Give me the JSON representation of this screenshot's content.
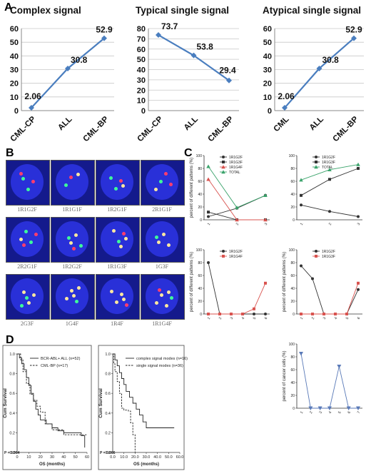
{
  "panels": {
    "a": "A",
    "b": "B",
    "c": "C",
    "d": "D"
  },
  "chart_data": [
    {
      "id": "complex",
      "type": "line",
      "title": "Complex signal",
      "categories": [
        "CML-CP",
        "ALL",
        "CML-BP"
      ],
      "values": [
        2.06,
        30.8,
        52.9
      ],
      "value_labels": [
        "2.06",
        "30.8",
        "52.9"
      ],
      "ylim": [
        0,
        60
      ],
      "yticks": [
        0,
        10,
        20,
        30,
        40,
        50,
        60
      ],
      "color": "#4a7ebf"
    },
    {
      "id": "typical",
      "type": "line",
      "title": "Typical single signal",
      "categories": [
        "CML-CP",
        "ALL",
        "CML-BP"
      ],
      "values": [
        73.7,
        53.8,
        29.4
      ],
      "value_labels": [
        "73.7",
        "53.8",
        "29.4"
      ],
      "ylim": [
        0,
        80
      ],
      "yticks": [
        0,
        10,
        20,
        30,
        40,
        50,
        60,
        70,
        80
      ],
      "color": "#4a7ebf"
    },
    {
      "id": "atypical",
      "type": "line",
      "title": "Atypical single signal",
      "categories": [
        "CML",
        "ALL",
        "CML-BP"
      ],
      "values": [
        2.06,
        30.8,
        52.9
      ],
      "value_labels": [
        "2.06",
        "30.8",
        "52.9"
      ],
      "ylim": [
        0,
        60
      ],
      "yticks": [
        0,
        10,
        20,
        30,
        40,
        50,
        60
      ],
      "color": "#4a7ebf"
    },
    {
      "id": "c1",
      "type": "line",
      "ylabel": "percent of different patterns (%)",
      "x": [
        1,
        2,
        3
      ],
      "ylim": [
        0,
        100
      ],
      "yticks": [
        0,
        20,
        40,
        60,
        80,
        100
      ],
      "series": [
        {
          "name": "1R1G2F",
          "values": [
            5,
            18,
            38
          ],
          "color": "#333333",
          "marker": "circle"
        },
        {
          "name": "1R1G3F",
          "values": [
            12,
            0,
            0
          ],
          "color": "#333333",
          "marker": "square"
        },
        {
          "name": "1R1G4F",
          "values": [
            63,
            0,
            0
          ],
          "color": "#d9534f",
          "marker": "triangle"
        },
        {
          "name": "TOTAL",
          "values": [
            83,
            19,
            38
          ],
          "color": "#3aa36b",
          "marker": "triangle"
        }
      ]
    },
    {
      "id": "c2",
      "type": "line",
      "x": [
        1,
        2,
        3
      ],
      "ylim": [
        0,
        100
      ],
      "yticks": [
        0,
        20,
        40,
        60,
        80,
        100
      ],
      "series": [
        {
          "name": "1R1G2F",
          "values": [
            23,
            13,
            5
          ],
          "color": "#333333",
          "marker": "circle"
        },
        {
          "name": "1R1G3F",
          "values": [
            38,
            63,
            80
          ],
          "color": "#333333",
          "marker": "square"
        },
        {
          "name": "TOTAL",
          "values": [
            62,
            78,
            86
          ],
          "color": "#3aa36b",
          "marker": "triangle"
        }
      ]
    },
    {
      "id": "c3",
      "type": "line",
      "ylabel": "percent of different patterns (%)",
      "x": [
        1,
        2,
        3,
        4,
        5,
        6
      ],
      "ylim": [
        0,
        100
      ],
      "yticks": [
        0,
        20,
        40,
        60,
        80,
        100
      ],
      "series": [
        {
          "name": "1R1G2F",
          "values": [
            80,
            0,
            0,
            0,
            0,
            0
          ],
          "color": "#333333",
          "marker": "circle"
        },
        {
          "name": "1R1G4F",
          "values": [
            0,
            0,
            0,
            0,
            8,
            48
          ],
          "color": "#d9534f",
          "marker": "square"
        }
      ]
    },
    {
      "id": "c4",
      "type": "line",
      "ylabel": "percent of different patterns (%)",
      "x": [
        1,
        2,
        3,
        4,
        5,
        6
      ],
      "ylim": [
        0,
        100
      ],
      "yticks": [
        0,
        20,
        40,
        60,
        80,
        100
      ],
      "series": [
        {
          "name": "1R1G2F",
          "values": [
            75,
            55,
            0,
            0,
            0,
            38
          ],
          "color": "#333333",
          "marker": "circle"
        },
        {
          "name": "1R1G3F",
          "values": [
            0,
            0,
            0,
            0,
            0,
            48
          ],
          "color": "#d9534f",
          "marker": "square"
        }
      ]
    },
    {
      "id": "c5",
      "type": "line",
      "ylabel": "percent of cancer cells (%)",
      "x": [
        1,
        2,
        3,
        4,
        5,
        6,
        7
      ],
      "ylim": [
        0,
        100
      ],
      "yticks": [
        0,
        20,
        40,
        60,
        80,
        100
      ],
      "series": [
        {
          "values": [
            85,
            0,
            0,
            0,
            65,
            0,
            0
          ],
          "color": "#5a7ab8",
          "marker": "triangle-down"
        }
      ]
    },
    {
      "id": "d1",
      "type": "survival",
      "xlabel": "OS (months)",
      "ylabel": "Cum Survival",
      "xlim": [
        0,
        60
      ],
      "xticks": [
        0,
        10,
        20,
        30,
        40,
        50,
        60
      ],
      "ylim": [
        0,
        1
      ],
      "yticks": [
        0.0,
        0.2,
        0.4,
        0.6,
        0.8,
        1.0
      ],
      "p_value": "P = 0.904",
      "series": [
        {
          "name": "BCR-ABL+ ALL (n=52)",
          "style": "solid",
          "points": [
            [
              0,
              1
            ],
            [
              2,
              0.96
            ],
            [
              4,
              0.9
            ],
            [
              6,
              0.84
            ],
            [
              8,
              0.76
            ],
            [
              10,
              0.68
            ],
            [
              12,
              0.6
            ],
            [
              14,
              0.52
            ],
            [
              16,
              0.44
            ],
            [
              18,
              0.38
            ],
            [
              20,
              0.33
            ],
            [
              25,
              0.29
            ],
            [
              30,
              0.25
            ],
            [
              35,
              0.22
            ],
            [
              40,
              0.2
            ],
            [
              55,
              0.17
            ],
            [
              58,
              0.05
            ]
          ]
        },
        {
          "name": "CML-BP (n=17)",
          "style": "dashed",
          "points": [
            [
              0,
              1
            ],
            [
              3,
              0.94
            ],
            [
              5,
              0.82
            ],
            [
              8,
              0.7
            ],
            [
              11,
              0.59
            ],
            [
              14,
              0.53
            ],
            [
              17,
              0.47
            ],
            [
              20,
              0.41
            ],
            [
              24,
              0.29
            ],
            [
              30,
              0.23
            ],
            [
              40,
              0.18
            ],
            [
              60,
              0.18
            ]
          ]
        }
      ]
    },
    {
      "id": "d2",
      "type": "survival",
      "xlabel": "OS (months)",
      "ylabel": "Cum Survival",
      "xlim": [
        0,
        60
      ],
      "xticks": [
        0,
        10,
        20,
        30,
        40,
        50,
        60
      ],
      "ylim": [
        0,
        1
      ],
      "yticks": [
        0.0,
        0.2,
        0.4,
        0.6,
        0.8,
        1.0
      ],
      "p_value": "P = 0.006",
      "series": [
        {
          "name": "complex signal modes (n=16)",
          "style": "solid",
          "points": [
            [
              0,
              1
            ],
            [
              2,
              0.94
            ],
            [
              4,
              0.88
            ],
            [
              6,
              0.81
            ],
            [
              8,
              0.75
            ],
            [
              10,
              0.69
            ],
            [
              12,
              0.62
            ],
            [
              15,
              0.56
            ],
            [
              18,
              0.5
            ],
            [
              21,
              0.44
            ],
            [
              24,
              0.38
            ],
            [
              27,
              0.31
            ],
            [
              30,
              0.25
            ],
            [
              55,
              0.25
            ]
          ]
        },
        {
          "name": "single signal modes (n=36)",
          "style": "dashed",
          "points": [
            [
              0,
              1
            ],
            [
              1,
              0.9
            ],
            [
              2,
              0.82
            ],
            [
              4,
              0.72
            ],
            [
              6,
              0.6
            ],
            [
              8,
              0.45
            ],
            [
              10,
              0.43
            ],
            [
              14,
              0.42
            ],
            [
              16,
              0.3
            ],
            [
              18,
              0.18
            ],
            [
              20,
              0.0
            ]
          ]
        }
      ]
    }
  ],
  "fish": {
    "cells": [
      {
        "label": "1R1G2F",
        "red": 2,
        "green": 2,
        "yellow": 0
      },
      {
        "label": "1R1G1F",
        "red": 1,
        "green": 1,
        "yellow": 1
      },
      {
        "label": "1R2G1F",
        "red": 1,
        "green": 2,
        "yellow": 1
      },
      {
        "label": "2R1G1F",
        "red": 2,
        "green": 1,
        "yellow": 1
      },
      {
        "label": "2R2G1F",
        "red": 2,
        "green": 2,
        "yellow": 1
      },
      {
        "label": "1R2G2F",
        "red": 1,
        "green": 2,
        "yellow": 2
      },
      {
        "label": "1R1G3F",
        "red": 1,
        "green": 1,
        "yellow": 3
      },
      {
        "label": "1G3F",
        "red": 0,
        "green": 1,
        "yellow": 3
      },
      {
        "label": "2G3F",
        "red": 0,
        "green": 2,
        "yellow": 3
      },
      {
        "label": "1G4F",
        "red": 0,
        "green": 1,
        "yellow": 4
      },
      {
        "label": "1R4F",
        "red": 1,
        "green": 0,
        "yellow": 4
      },
      {
        "label": "1R1G4F",
        "red": 1,
        "green": 1,
        "yellow": 4
      }
    ]
  }
}
